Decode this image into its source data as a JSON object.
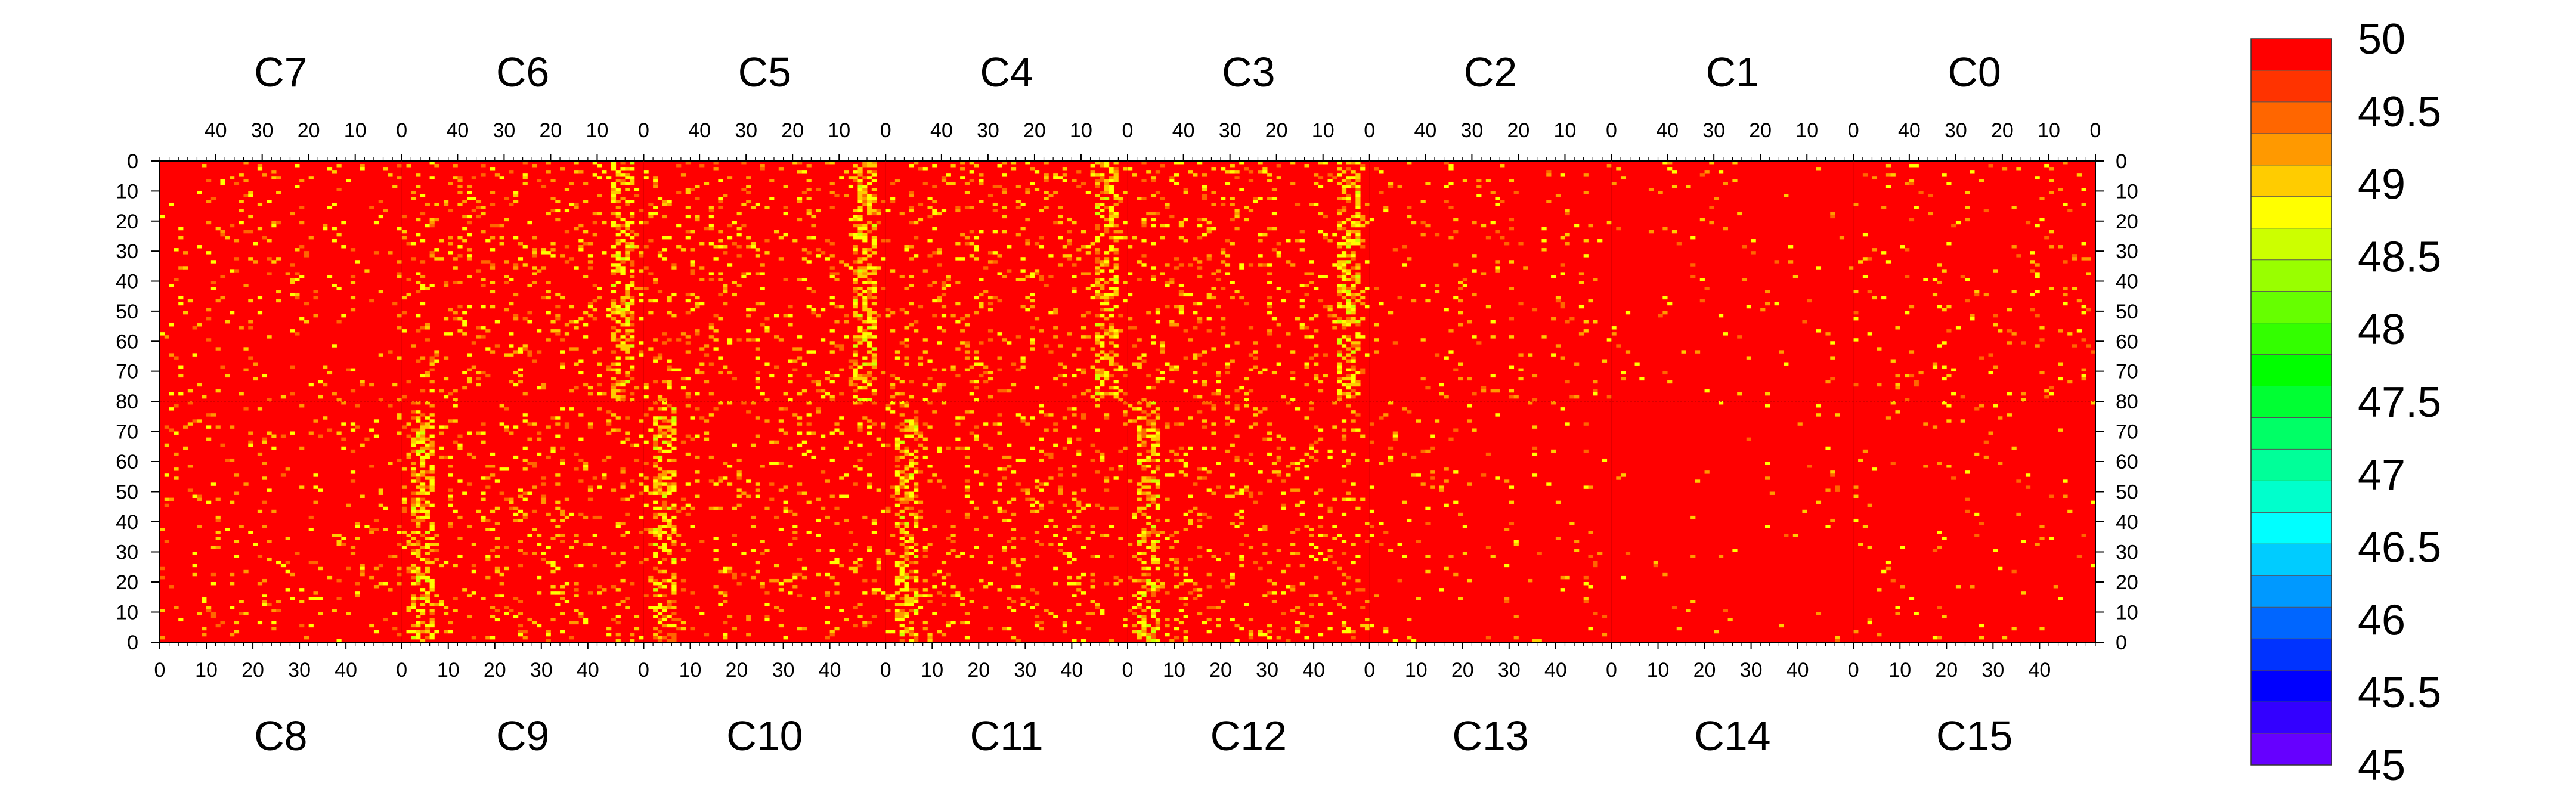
{
  "chart_data": {
    "type": "heatmap",
    "title": "",
    "xlabel": "",
    "ylabel": "",
    "grid": false,
    "layout": "two rows of 8 chip panels sharing a midline at row 80",
    "top_chips": [
      "C7",
      "C6",
      "C5",
      "C4",
      "C3",
      "C2",
      "C1",
      "C0"
    ],
    "bottom_chips": [
      "C8",
      "C9",
      "C10",
      "C11",
      "C12",
      "C13",
      "C14",
      "C15"
    ],
    "columns_per_chip": 52,
    "rows_per_half": 80,
    "top_column_ticks": [
      "40",
      "30",
      "20",
      "10",
      "0"
    ],
    "bottom_column_ticks": [
      "0",
      "10",
      "20",
      "30",
      "40"
    ],
    "top_row_ticks": [
      "0",
      "10",
      "20",
      "30",
      "40",
      "50",
      "60",
      "70",
      "80"
    ],
    "bottom_row_ticks": [
      "70",
      "60",
      "50",
      "40",
      "30",
      "20",
      "10",
      "0"
    ],
    "color_scale": {
      "min": 45,
      "max": 50,
      "tick_labels": [
        "50",
        "49.5",
        "49",
        "48.5",
        "48",
        "47.5",
        "47",
        "46.5",
        "46",
        "45.5",
        "45"
      ],
      "colors": [
        "#ff0000",
        "#ff3300",
        "#ff6600",
        "#ff9900",
        "#ffcc00",
        "#ffff00",
        "#ccff00",
        "#99ff00",
        "#66ff00",
        "#33ff00",
        "#00ff00",
        "#00ff33",
        "#00ff66",
        "#00ff99",
        "#00ffcc",
        "#00ffff",
        "#00ccff",
        "#0099ff",
        "#0066ff",
        "#0033ff",
        "#0000ff",
        "#3300ff",
        "#6600ff"
      ]
    },
    "background_value": 50,
    "typical_noise_value": 49.2,
    "column_noise_fraction_by_chip": {
      "C7": 0.05,
      "C6": 0.1,
      "C5": 0.1,
      "C4": 0.1,
      "C3": 0.1,
      "C2": 0.04,
      "C1": 0.02,
      "C0": 0.04,
      "C8": 0.05,
      "C9": 0.1,
      "C10": 0.08,
      "C11": 0.1,
      "C12": 0.1,
      "C13": 0.03,
      "C14": 0.01,
      "C15": 0.02
    },
    "hot_columns_at_chip_edges": [
      2,
      3,
      4,
      5,
      6
    ]
  }
}
